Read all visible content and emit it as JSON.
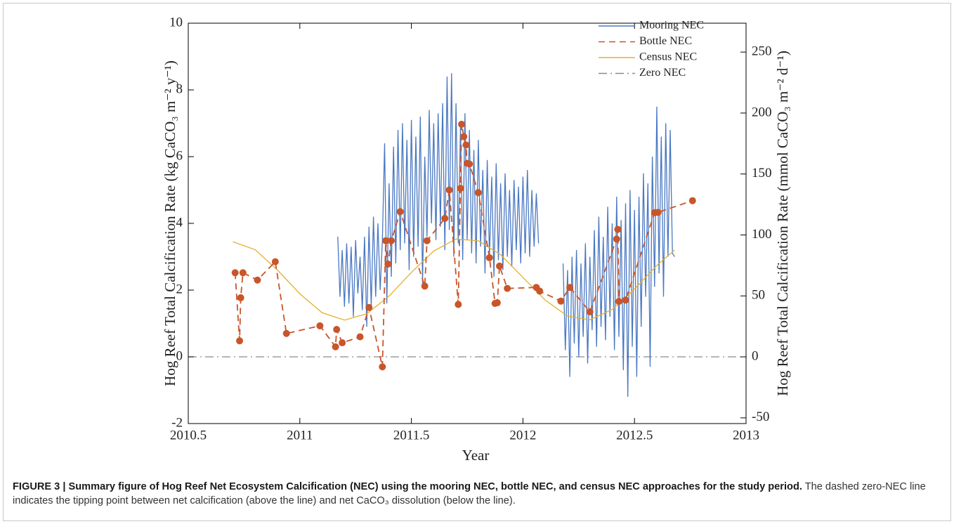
{
  "chart_data": {
    "type": "line",
    "xlabel": "Year",
    "ylabel": "Hog Reef Total Calcification Rate (kg CaCO₃ m⁻² y⁻¹)",
    "y2label": "Hog Reef Total Calcification Rate (mmol CaCO₃ m⁻² d⁻¹)",
    "xlim": [
      2010.5,
      2013
    ],
    "xticks": [
      2010.5,
      2011,
      2011.5,
      2012,
      2012.5,
      2013
    ],
    "ylim": [
      -2,
      10
    ],
    "yticks": [
      -2,
      0,
      2,
      4,
      6,
      8,
      10
    ],
    "y2lim": [
      -54.7,
      273.7
    ],
    "y2ticks": [
      -50,
      0,
      50,
      100,
      150,
      200,
      250
    ],
    "legend": "upper right",
    "series": [
      {
        "name": "Mooring NEC",
        "color": "#4a78c2",
        "dash": "solid",
        "marker": false,
        "x": [
          2011.17,
          2011.18,
          2011.19,
          2011.2,
          2011.21,
          2011.22,
          2011.23,
          2011.24,
          2011.25,
          2011.26,
          2011.27,
          2011.28,
          2011.29,
          2011.3,
          2011.31,
          2011.32,
          2011.33,
          2011.34,
          2011.35,
          2011.36,
          2011.37,
          2011.38,
          2011.39,
          2011.4,
          2011.41,
          2011.42,
          2011.43,
          2011.44,
          2011.45,
          2011.46,
          2011.47,
          2011.48,
          2011.49,
          2011.5,
          2011.51,
          2011.52,
          2011.53,
          2011.54,
          2011.55,
          2011.56,
          2011.57,
          2011.58,
          2011.59,
          2011.6,
          2011.61,
          2011.62,
          2011.63,
          2011.64,
          2011.65,
          2011.66,
          2011.67,
          2011.68,
          2011.69,
          2011.7,
          2011.71,
          2011.72,
          2011.73,
          2011.74,
          2011.75,
          2011.76,
          2011.77,
          2011.78,
          2011.79,
          2011.8,
          2011.81,
          2011.82,
          2011.83,
          2011.84,
          2011.85,
          2011.86,
          2011.87,
          2011.88,
          2011.89,
          2011.9,
          2011.91,
          2011.92,
          2011.93,
          2011.94,
          2011.95,
          2011.96,
          2011.97,
          2011.98,
          2011.99,
          2012,
          2012.01,
          2012.02,
          2012.03,
          2012.04,
          2012.05,
          2012.06,
          2012.07,
          2012.12,
          2012.18,
          2012.19,
          2012.2,
          2012.21,
          2012.22,
          2012.23,
          2012.24,
          2012.25,
          2012.26,
          2012.27,
          2012.28,
          2012.29,
          2012.3,
          2012.31,
          2012.32,
          2012.33,
          2012.34,
          2012.35,
          2012.36,
          2012.37,
          2012.38,
          2012.39,
          2012.4,
          2012.41,
          2012.42,
          2012.43,
          2012.44,
          2012.45,
          2012.46,
          2012.47,
          2012.48,
          2012.49,
          2012.5,
          2012.51,
          2012.52,
          2012.53,
          2012.54,
          2012.55,
          2012.56,
          2012.57,
          2012.58,
          2012.59,
          2012.6,
          2012.61,
          2012.62,
          2012.63,
          2012.64,
          2012.65,
          2012.66,
          2012.67,
          2012.68
        ],
        "values": [
          3.6,
          1.8,
          3.2,
          1.5,
          3.4,
          1.6,
          3.3,
          1.2,
          3.5,
          1.9,
          3.0,
          1.4,
          3.6,
          0.9,
          3.9,
          1.5,
          4.2,
          1.8,
          4.0,
          2.0,
          3.5,
          6.4,
          1.6,
          5.2,
          2.4,
          6.3,
          2.8,
          6.8,
          3.2,
          7.0,
          3.4,
          6.5,
          2.6,
          7.1,
          3.0,
          6.6,
          3.3,
          7.2,
          2.2,
          6.0,
          3.6,
          7.4,
          4.0,
          7.0,
          3.5,
          7.3,
          3.9,
          7.6,
          3.2,
          8.4,
          3.8,
          8.5,
          3.0,
          7.6,
          3.4,
          6.9,
          2.9,
          7.3,
          3.5,
          6.8,
          3.1,
          6.2,
          2.8,
          6.5,
          3.3,
          5.6,
          2.5,
          5.9,
          3.0,
          5.4,
          2.4,
          5.8,
          2.9,
          5.2,
          2.6,
          5.5,
          3.0,
          5.0,
          2.7,
          5.3,
          3.2,
          5.1,
          2.8,
          5.4,
          3.1,
          5.6,
          3.0,
          5.0,
          3.3,
          4.9,
          3.4,
          null,
          2.8,
          0.2,
          2.6,
          -0.6,
          3.0,
          0.4,
          3.2,
          0.0,
          2.8,
          0.6,
          3.4,
          -0.2,
          3.0,
          0.8,
          3.8,
          0.3,
          4.2,
          0.9,
          3.6,
          0.5,
          4.5,
          1.2,
          4.0,
          0.2,
          4.8,
          0.6,
          4.1,
          -0.4,
          4.6,
          -1.2,
          5.0,
          0.3,
          4.4,
          -0.6,
          4.8,
          0.9,
          5.5,
          1.8,
          5.2,
          -0.3,
          6.0,
          2.1,
          7.5,
          2.5,
          6.6,
          1.8,
          7.0,
          3.0,
          6.8,
          3.1,
          3.0
        ]
      },
      {
        "name": "Bottle NEC",
        "color": "#c9552a",
        "dash": "dashed",
        "marker": true,
        "x": [
          2010.71,
          2010.73,
          2010.735,
          2010.745,
          2010.81,
          2010.89,
          2010.94,
          2011.09,
          2011.16,
          2011.165,
          2011.19,
          2011.27,
          2011.31,
          2011.37,
          2011.385,
          2011.395,
          2011.41,
          2011.45,
          2011.56,
          2011.57,
          2011.65,
          2011.67,
          2011.71,
          2011.72,
          2011.725,
          2011.735,
          2011.745,
          2011.75,
          2011.76,
          2011.8,
          2011.85,
          2011.875,
          2011.885,
          2011.895,
          2011.93,
          2012.06,
          2012.075,
          2012.17,
          2012.21,
          2012.3,
          2012.42,
          2012.425,
          2012.43,
          2012.46,
          2012.59,
          2012.605,
          2012.76
        ],
        "values": [
          2.52,
          0.48,
          1.77,
          2.52,
          2.3,
          2.85,
          0.7,
          0.93,
          0.3,
          0.82,
          0.42,
          0.6,
          1.48,
          -0.3,
          3.48,
          2.78,
          3.48,
          4.35,
          2.12,
          3.48,
          4.15,
          5.0,
          1.57,
          5.05,
          6.97,
          6.6,
          6.35,
          5.8,
          5.78,
          4.92,
          2.97,
          1.6,
          1.62,
          2.72,
          2.05,
          2.08,
          1.97,
          1.67,
          2.08,
          1.35,
          3.53,
          3.82,
          1.66,
          1.7,
          4.32,
          4.33,
          4.68
        ]
      },
      {
        "name": "Census NEC",
        "color": "#e5b02c",
        "dash": "solid",
        "marker": false,
        "x": [
          2010.7,
          2010.8,
          2010.9,
          2011,
          2011.1,
          2011.2,
          2011.3,
          2011.4,
          2011.5,
          2011.6,
          2011.7,
          2011.8,
          2011.9,
          2012,
          2012.1,
          2012.2,
          2012.3,
          2012.4,
          2012.5,
          2012.6,
          2012.68
        ],
        "values": [
          3.45,
          3.21,
          2.6,
          1.89,
          1.32,
          1.1,
          1.29,
          1.82,
          2.53,
          3.17,
          3.53,
          3.48,
          3.06,
          2.38,
          1.7,
          1.22,
          1.11,
          1.42,
          2.03,
          2.74,
          3.2
        ]
      },
      {
        "name": "Zero NEC",
        "color": "#8a8a8a",
        "dash": "dashdot",
        "marker": false,
        "x": [
          2010.5,
          2013
        ],
        "values": [
          0,
          0
        ]
      }
    ]
  },
  "caption": {
    "bold": "FIGURE 3 | Summary figure of Hog Reef Net Ecosystem Calcification (NEC) using the mooring NEC, bottle NEC, and census NEC approaches for the study period.",
    "text": "The dashed zero-NEC line indicates the tipping point between net calcification (above the line) and net CaCO₃ dissolution (below the line)."
  }
}
